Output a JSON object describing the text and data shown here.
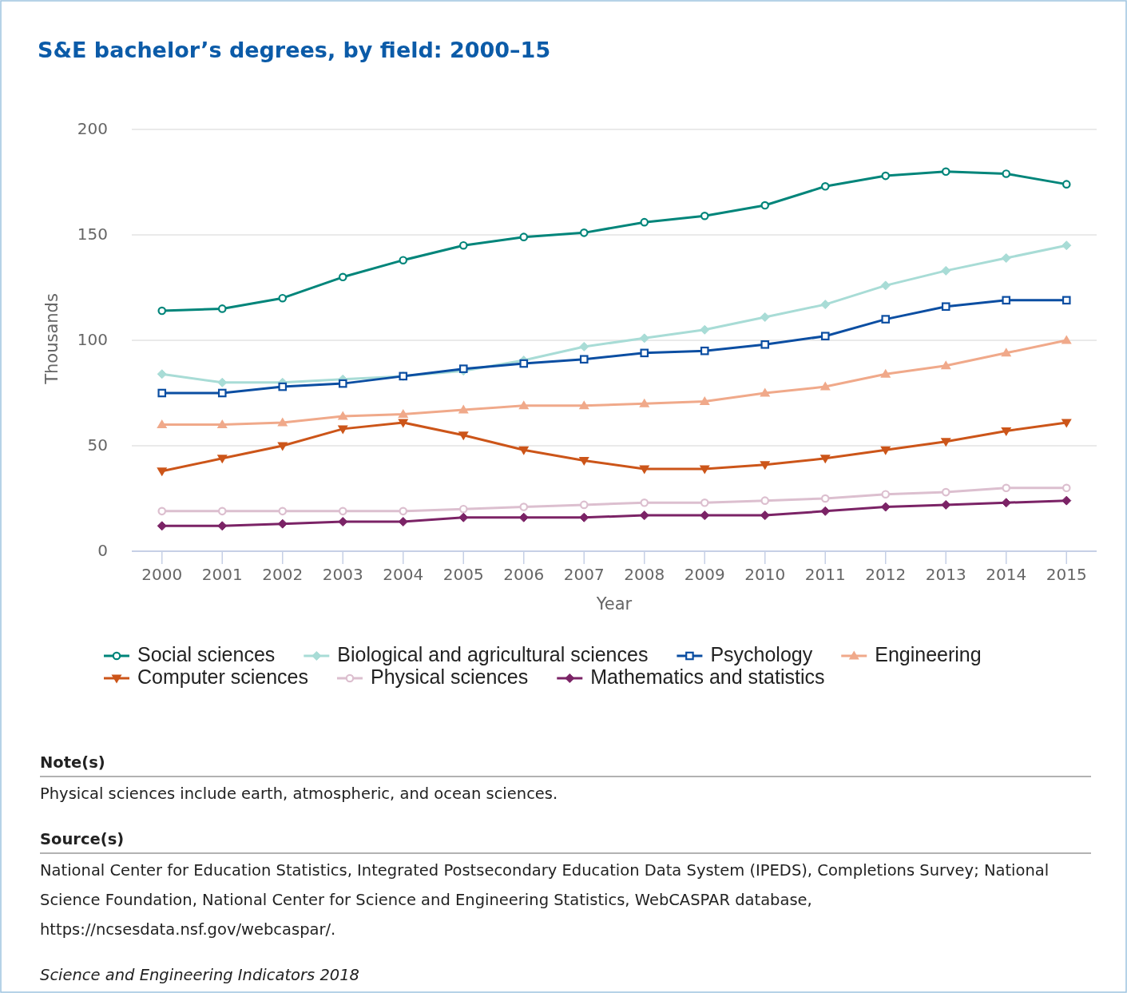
{
  "chart_data": {
    "type": "line",
    "title": "S&E bachelor’s degrees, by field: 2000–15",
    "xlabel": "Year",
    "ylabel": "Thousands",
    "x": [
      2000,
      2001,
      2002,
      2003,
      2004,
      2005,
      2006,
      2007,
      2008,
      2009,
      2010,
      2011,
      2012,
      2013,
      2014,
      2015
    ],
    "xlim": [
      1999.5,
      2015.5
    ],
    "xticks": [
      2000,
      2001,
      2002,
      2003,
      2004,
      2005,
      2006,
      2007,
      2008,
      2009,
      2010,
      2011,
      2012,
      2013,
      2014,
      2015
    ],
    "ylim": [
      0,
      200
    ],
    "yticks": [
      0,
      50,
      100,
      150,
      200
    ],
    "grid": "y",
    "legend": "bottom",
    "series": [
      {
        "name": "Social sciences",
        "color": "#00857a",
        "marker": "circle",
        "values": [
          114,
          115,
          120,
          130,
          138,
          145,
          149,
          151,
          156,
          159,
          164,
          173,
          178,
          180,
          179,
          174
        ]
      },
      {
        "name": "Biological and agricultural sciences",
        "color": "#a8dcd6",
        "marker": "diamond",
        "values": [
          84,
          80,
          80,
          81.5,
          83,
          85.5,
          90.5,
          97,
          101,
          105,
          111,
          117,
          126,
          133,
          139,
          145
        ]
      },
      {
        "name": "Psychology",
        "color": "#0b4ea2",
        "marker": "square",
        "values": [
          75,
          75,
          78,
          79.5,
          83,
          86.5,
          89,
          91,
          94,
          95,
          98,
          102,
          110,
          116,
          119,
          119
        ]
      },
      {
        "name": "Engineering",
        "color": "#f0a98a",
        "marker": "triangle",
        "values": [
          60,
          60,
          61,
          64,
          65,
          67,
          69,
          69,
          70,
          71,
          75,
          78,
          84,
          88,
          94,
          100
        ]
      },
      {
        "name": "Computer sciences",
        "color": "#cc5519",
        "marker": "triangle-down",
        "values": [
          38,
          44,
          50,
          58,
          61,
          55,
          48,
          43,
          39,
          39,
          41,
          44,
          48,
          52,
          57,
          61
        ]
      },
      {
        "name": "Physical sciences",
        "color": "#dcbfcf",
        "marker": "circle",
        "values": [
          19,
          19,
          19,
          19,
          19,
          20,
          21,
          22,
          23,
          23,
          24,
          25,
          27,
          28,
          30,
          30
        ]
      },
      {
        "name": "Mathematics and statistics",
        "color": "#7b2366",
        "marker": "diamond",
        "values": [
          12,
          12,
          13,
          14,
          14,
          16,
          16,
          16,
          17,
          17,
          17,
          19,
          21,
          22,
          23,
          24
        ]
      }
    ],
    "annotations": [
      "Note(s)",
      "Physical sciences include earth, atmospheric, and ocean sciences.",
      "Source(s)",
      "National Center for Education Statistics, Integrated Postsecondary Education Data System (IPEDS), Completions Survey; National Science Foundation, National Center for Science and Engineering Statistics, WebCASPAR database, https://ncsesdata.nsf.gov/webcaspar/.",
      "Science and Engineering Indicators 2018"
    ]
  }
}
